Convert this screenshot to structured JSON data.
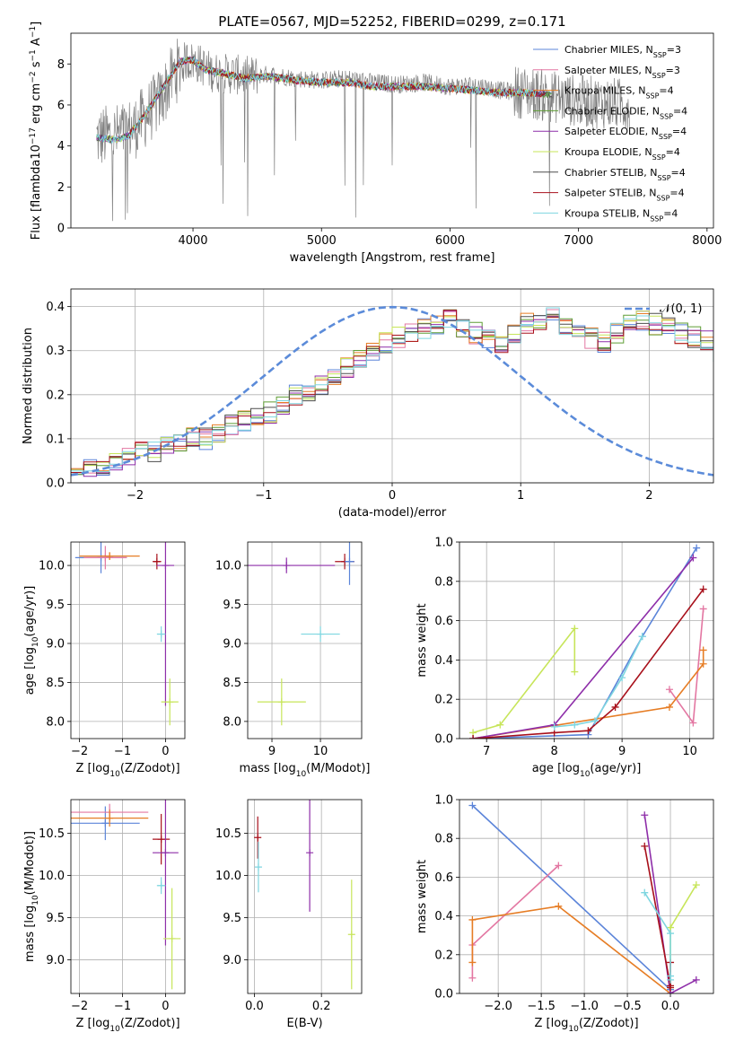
{
  "figure_title": "PLATE=0567, MJD=52252, FIBERID=0299, z=0.171",
  "models": [
    {
      "name": "Chabrier MILES, N$_{SSP}$=3",
      "label_main": "Chabrier MILES, N",
      "label_sub": "SSP",
      "label_end": "=3",
      "color": "#5b84d9"
    },
    {
      "name": "Salpeter MILES, N$_{SSP}$=3",
      "label_main": "Salpeter MILES, N",
      "label_sub": "SSP",
      "label_end": "=3",
      "color": "#e377a2"
    },
    {
      "name": "Kroupa MILES, N$_{SSP}$=4",
      "label_main": "Kroupa MILES, N",
      "label_sub": "SSP",
      "label_end": "=4",
      "color": "#e67d25"
    },
    {
      "name": "Chabrier ELODIE, N$_{SSP}$=4",
      "label_main": "Chabrier ELODIE, N",
      "label_sub": "SSP",
      "label_end": "=4",
      "color": "#5f9e35"
    },
    {
      "name": "Salpeter ELODIE, N$_{SSP}$=4",
      "label_main": "Salpeter ELODIE, N",
      "label_sub": "SSP",
      "label_end": "=4",
      "color": "#8e2ea9"
    },
    {
      "name": "Kroupa ELODIE, N$_{SSP}$=4",
      "label_main": "Kroupa ELODIE, N",
      "label_sub": "SSP",
      "label_end": "=4",
      "color": "#c7e55a"
    },
    {
      "name": "Chabrier STELIB, N$_{SSP}$=4",
      "label_main": "Chabrier STELIB, N",
      "label_sub": "SSP",
      "label_end": "=4",
      "color": "#4d4d4d"
    },
    {
      "name": "Salpeter STELIB, N$_{SSP}$=4",
      "label_main": "Salpeter STELIB, N",
      "label_sub": "SSP",
      "label_end": "=4",
      "color": "#a8101b"
    },
    {
      "name": "Kroupa STELIB, N$_{SSP}$=4",
      "label_main": "Kroupa STELIB, N",
      "label_sub": "SSP",
      "label_end": "=4",
      "color": "#7ed6e0"
    }
  ],
  "chart_data": [
    {
      "id": "spectrum",
      "type": "line",
      "xlabel": "wavelength [Angstrom, rest frame]",
      "ylabel": "Flux [f$_\\lambda$10$^{-17}$ erg cm$^{-2}$ s$^{-1}$ A$^{-1}$]",
      "xlim": [
        3050,
        8050
      ],
      "ylim": [
        0,
        9.5
      ],
      "xticks": [
        4000,
        5000,
        6000,
        7000,
        8000
      ],
      "yticks": [
        0,
        2,
        4,
        6,
        8
      ],
      "grid": false,
      "legend": "right",
      "data_series": {
        "name": "data",
        "color": "#808080",
        "x": [
          3250,
          3400,
          3550,
          3650,
          3750,
          3850,
          3950,
          4050,
          4150,
          4300,
          4450,
          4600,
          4800,
          5000,
          5200,
          5400,
          5600,
          5800,
          6000,
          6200,
          6400,
          6600,
          6800,
          7000,
          7200,
          7400
        ],
        "y": [
          4.4,
          4.5,
          4.9,
          5.6,
          6.3,
          7.5,
          8.2,
          8.0,
          7.6,
          7.5,
          7.4,
          7.5,
          7.3,
          7.2,
          7.3,
          7.1,
          7.0,
          7.1,
          6.9,
          7.0,
          6.7,
          6.6,
          6.4,
          6.2,
          6.1,
          6.0
        ]
      },
      "model_curve": {
        "x": [
          3250,
          3400,
          3500,
          3600,
          3700,
          3800,
          3900,
          4000,
          4100,
          4200,
          4400,
          4600,
          4800,
          5000,
          5200,
          5400,
          5600,
          5800,
          6000,
          6200,
          6400,
          6600,
          6800
        ],
        "y": [
          4.4,
          4.3,
          4.5,
          5.3,
          6.2,
          7.2,
          8.1,
          8.2,
          7.7,
          7.6,
          7.3,
          7.4,
          7.2,
          7.1,
          7.1,
          6.9,
          6.9,
          6.9,
          6.8,
          6.7,
          6.6,
          6.6,
          6.5
        ]
      }
    },
    {
      "id": "residuals",
      "type": "line",
      "xlabel": "(data-model)/error",
      "ylabel": "Normed distribution",
      "xlim": [
        -2.5,
        2.5
      ],
      "ylim": [
        0,
        0.44
      ],
      "xticks": [
        -2,
        -1,
        0,
        1,
        2
      ],
      "yticks": [
        0.0,
        0.1,
        0.2,
        0.3,
        0.4
      ],
      "grid": true,
      "legend": "top-right",
      "reference": {
        "name": "$\\mathcal{N}(0,1)$",
        "label_text": "𝒩(0, 1)",
        "color": "#5b8bd9",
        "mean": 0,
        "sigma": 1
      },
      "bin_edges_start": -2.5,
      "bin_width": 0.1,
      "histogram_envelope": [
        0.04,
        0.03,
        0.04,
        0.05,
        0.06,
        0.07,
        0.07,
        0.08,
        0.09,
        0.1,
        0.1,
        0.11,
        0.13,
        0.14,
        0.15,
        0.16,
        0.18,
        0.2,
        0.21,
        0.22,
        0.24,
        0.26,
        0.28,
        0.3,
        0.32,
        0.33,
        0.34,
        0.35,
        0.36,
        0.37,
        0.35,
        0.34,
        0.33,
        0.32,
        0.34,
        0.36,
        0.37,
        0.38,
        0.36,
        0.34,
        0.33,
        0.32,
        0.34,
        0.36,
        0.37,
        0.36,
        0.35,
        0.34,
        0.33,
        0.32,
        0.3,
        0.29,
        0.27,
        0.25,
        0.24,
        0.23,
        0.22,
        0.2,
        0.19,
        0.18,
        0.16,
        0.15,
        0.14,
        0.13,
        0.12,
        0.11,
        0.1,
        0.09,
        0.08,
        0.08,
        0.07,
        0.06,
        0.06,
        0.05,
        0.05,
        0.05,
        0.04,
        0.04,
        0.04,
        0.04
      ]
    },
    {
      "id": "age-vs-Z",
      "type": "scatter",
      "xlabel": "Z [log$_{10}$(Z/Z$_\\odot$)]",
      "ylabel": "age [log$_{10}$(age/yr)]",
      "xlim": [
        -2.2,
        0.45
      ],
      "ylim": [
        7.78,
        10.3
      ],
      "xticks": [
        -2,
        -1,
        0
      ],
      "yticks": [
        8.0,
        8.5,
        9.0,
        9.5,
        10.0
      ],
      "grid": true,
      "points": [
        {
          "model": 0,
          "x": -1.5,
          "y": 10.1,
          "xerr": 0.6,
          "yerr": 0.2
        },
        {
          "model": 1,
          "x": -1.4,
          "y": 10.1,
          "xerr": 0.5,
          "yerr": 0.15
        },
        {
          "model": 2,
          "x": -1.3,
          "y": 10.12,
          "xerr": 0.7,
          "yerr": 0.05
        },
        {
          "model": 7,
          "x": -0.2,
          "y": 10.05,
          "xerr": 0.1,
          "yerr": 0.1
        },
        {
          "model": 4,
          "x": 0.0,
          "y": 10.0,
          "xerr": 0.2,
          "yerr": 1.8
        },
        {
          "model": 8,
          "x": -0.1,
          "y": 9.12,
          "xerr": 0.1,
          "yerr": 0.1
        },
        {
          "model": 5,
          "x": 0.1,
          "y": 8.25,
          "xerr": 0.2,
          "yerr": 0.3
        }
      ]
    },
    {
      "id": "age-vs-mass",
      "type": "scatter",
      "xlabel": "mass [log$_{10}$(M/M$_\\odot$)]",
      "ylabel": "",
      "xlim": [
        8.5,
        10.85
      ],
      "ylim": [
        7.78,
        10.3
      ],
      "xticks": [
        9,
        10
      ],
      "yticks": [
        8.0,
        8.5,
        9.0,
        9.5,
        10.0
      ],
      "grid": true,
      "points": [
        {
          "model": 4,
          "x": 9.3,
          "y": 10.0,
          "xerr": 1.0,
          "yerr": 0.1
        },
        {
          "model": 5,
          "x": 9.2,
          "y": 8.25,
          "xerr": 0.5,
          "yerr": 0.3
        },
        {
          "model": 8,
          "x": 10.0,
          "y": 9.12,
          "xerr": 0.4,
          "yerr": 0.1
        },
        {
          "model": 7,
          "x": 10.5,
          "y": 10.05,
          "xerr": 0.2,
          "yerr": 0.1
        },
        {
          "model": 0,
          "x": 10.6,
          "y": 10.05,
          "xerr": 0.1,
          "yerr": 0.3
        }
      ]
    },
    {
      "id": "weight-vs-age",
      "type": "line",
      "xlabel": "age [log$_{10}$(age/yr)]",
      "ylabel": "mass weight",
      "xlim": [
        6.6,
        10.35
      ],
      "ylim": [
        0,
        1.0
      ],
      "xticks": [
        7,
        8,
        9,
        10
      ],
      "yticks": [
        0.0,
        0.2,
        0.4,
        0.6,
        0.8,
        1.0
      ],
      "grid": true,
      "series": [
        {
          "model": 0,
          "x": [
            6.8,
            8.5,
            9.3,
            10.1
          ],
          "y": [
            0.0,
            0.02,
            0.52,
            0.97
          ]
        },
        {
          "model": 1,
          "x": [
            9.7,
            10.05,
            10.2
          ],
          "y": [
            0.25,
            0.08,
            0.66
          ]
        },
        {
          "model": 2,
          "x": [
            6.8,
            9.7,
            10.2,
            10.2
          ],
          "y": [
            0.0,
            0.16,
            0.38,
            0.45
          ]
        },
        {
          "model": 4,
          "x": [
            6.8,
            8.0,
            10.05
          ],
          "y": [
            0.0,
            0.07,
            0.92
          ]
        },
        {
          "model": 5,
          "x": [
            6.8,
            7.2,
            8.3,
            8.3
          ],
          "y": [
            0.03,
            0.07,
            0.56,
            0.34
          ]
        },
        {
          "model": 7,
          "x": [
            6.8,
            8.0,
            8.5,
            8.9,
            10.2
          ],
          "y": [
            0.0,
            0.03,
            0.04,
            0.16,
            0.76
          ]
        },
        {
          "model": 8,
          "x": [
            8.0,
            8.3,
            8.6,
            9.0,
            9.3
          ],
          "y": [
            0.06,
            0.07,
            0.09,
            0.31,
            0.52
          ]
        }
      ]
    },
    {
      "id": "mass-vs-Z",
      "type": "scatter",
      "xlabel": "Z [log$_{10}$(Z/Z$_\\odot$)]",
      "ylabel": "mass [log$_{10}$(M/M$_\\odot$)]",
      "xlim": [
        -2.2,
        0.45
      ],
      "ylim": [
        8.6,
        10.9
      ],
      "xticks": [
        -2,
        -1,
        0
      ],
      "yticks": [
        9.0,
        9.5,
        10.0,
        10.5
      ],
      "grid": true,
      "points": [
        {
          "model": 0,
          "x": -1.4,
          "y": 10.62,
          "xerr": 0.8,
          "yerr": 0.2
        },
        {
          "model": 1,
          "x": -1.3,
          "y": 10.75,
          "xerr": 0.9,
          "yerr": 0.1
        },
        {
          "model": 2,
          "x": -1.3,
          "y": 10.68,
          "xerr": 0.9,
          "yerr": 0.1
        },
        {
          "model": 7,
          "x": -0.1,
          "y": 10.43,
          "xerr": 0.2,
          "yerr": 0.3
        },
        {
          "model": 4,
          "x": 0.0,
          "y": 10.27,
          "xerr": 0.3,
          "yerr": 1.1
        },
        {
          "model": 8,
          "x": -0.1,
          "y": 9.88,
          "xerr": 0.1,
          "yerr": 0.1
        },
        {
          "model": 5,
          "x": 0.15,
          "y": 9.25,
          "xerr": 0.2,
          "yerr": 0.6
        }
      ]
    },
    {
      "id": "mass-vs-EBV",
      "type": "scatter",
      "xlabel": "E(B-V)",
      "ylabel": "",
      "xlim": [
        -0.02,
        0.32
      ],
      "ylim": [
        8.6,
        10.9
      ],
      "xticks": [
        0.0,
        0.2
      ],
      "yticks": [
        9.0,
        9.5,
        10.0,
        10.5
      ],
      "grid": true,
      "points": [
        {
          "model": 7,
          "x": 0.01,
          "y": 10.45,
          "xerr": 0.0,
          "yerr": 0.25
        },
        {
          "model": 8,
          "x": 0.012,
          "y": 10.1,
          "xerr": 0.0,
          "yerr": 0.3
        },
        {
          "model": 4,
          "x": 0.165,
          "y": 10.27,
          "xerr": 0.0,
          "yerr": 0.7
        },
        {
          "model": 5,
          "x": 0.29,
          "y": 9.3,
          "xerr": 0.0,
          "yerr": 0.65
        }
      ]
    },
    {
      "id": "weight-vs-Z",
      "type": "line",
      "xlabel": "Z [log$_{10}$(Z/Z$_\\odot$)]",
      "ylabel": "mass weight",
      "xlim": [
        -2.45,
        0.5
      ],
      "ylim": [
        0,
        1.0
      ],
      "xticks": [
        -2.0,
        -1.5,
        -1.0,
        -0.5,
        0.0
      ],
      "yticks": [
        0.0,
        0.2,
        0.4,
        0.6,
        0.8,
        1.0
      ],
      "grid": true,
      "series": [
        {
          "model": 0,
          "x": [
            -2.3,
            0.0
          ],
          "y": [
            0.97,
            0.02
          ]
        },
        {
          "model": 1,
          "x": [
            -2.3,
            -2.3,
            -1.3
          ],
          "y": [
            0.08,
            0.25,
            0.66
          ]
        },
        {
          "model": 2,
          "x": [
            -2.3,
            -2.3,
            -1.3,
            0.0
          ],
          "y": [
            0.16,
            0.38,
            0.45,
            0.0
          ]
        },
        {
          "model": 4,
          "x": [
            -0.3,
            0.0,
            0.3
          ],
          "y": [
            0.92,
            0.0,
            0.07
          ]
        },
        {
          "model": 5,
          "x": [
            0.3,
            0.0,
            0.0
          ],
          "y": [
            0.56,
            0.34,
            0.03
          ]
        },
        {
          "model": 7,
          "x": [
            -0.3,
            0.0,
            0.0,
            0.0
          ],
          "y": [
            0.76,
            0.04,
            0.03,
            0.16
          ]
        },
        {
          "model": 8,
          "x": [
            -0.3,
            0.0,
            0.0,
            0.0
          ],
          "y": [
            0.52,
            0.31,
            0.09,
            0.07
          ]
        }
      ]
    }
  ]
}
